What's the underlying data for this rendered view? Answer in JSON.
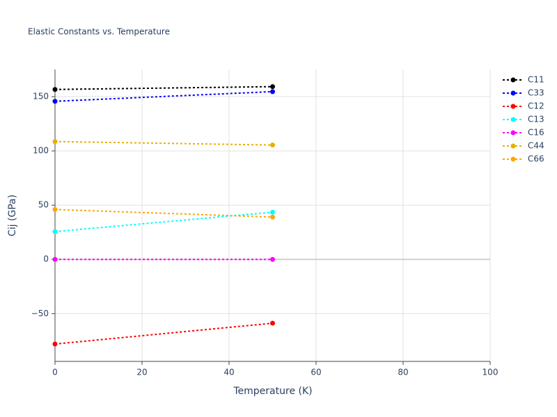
{
  "chart_data": {
    "type": "line",
    "title": "Elastic Constants vs. Temperature",
    "x_label": "Temperature (K)",
    "y_label": "Cij (GPa)",
    "x": [
      0,
      50
    ],
    "series": [
      {
        "name": "C11",
        "color": "#000000",
        "values": [
          156.6,
          159.2
        ]
      },
      {
        "name": "C33",
        "color": "#0000ff",
        "values": [
          145.7,
          154.6
        ]
      },
      {
        "name": "C12",
        "color": "#ff0000",
        "values": [
          -78,
          -58.8
        ]
      },
      {
        "name": "C13",
        "color": "#00ffff",
        "values": [
          25.6,
          43.5
        ]
      },
      {
        "name": "C16",
        "color": "#ff00ff",
        "values": [
          0,
          0
        ]
      },
      {
        "name": "C44",
        "color": "#e6b000",
        "values": [
          108.6,
          105.4
        ]
      },
      {
        "name": "C66",
        "color": "#ffa500",
        "values": [
          46,
          39
        ]
      }
    ],
    "xlim": [
      0,
      100
    ],
    "xticks": [
      0,
      20,
      40,
      60,
      80,
      100
    ],
    "ylim": [
      -94,
      175
    ],
    "yticks": [
      {
        "value": -50,
        "label": "−50"
      },
      0,
      50,
      100,
      150
    ],
    "grid": true,
    "zeroline": true,
    "legend": "top-right"
  }
}
